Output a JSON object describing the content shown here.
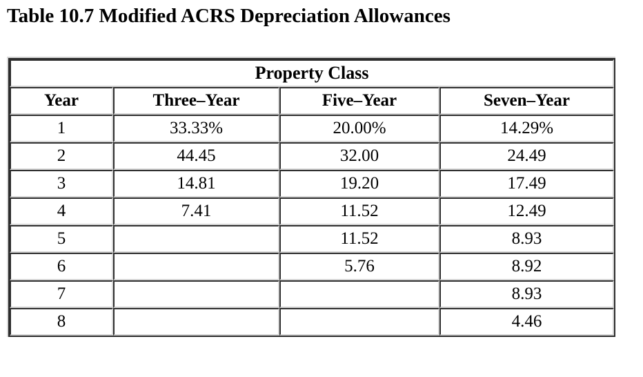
{
  "title": "Table 10.7 Modified ACRS Depreciation Allowances",
  "table": {
    "group_header": "Property Class",
    "columns": [
      "Year",
      "Three–Year",
      "Five–Year",
      "Seven–Year"
    ],
    "rows": [
      [
        "1",
        "33.33%",
        "20.00%",
        "14.29%"
      ],
      [
        "2",
        "44.45",
        "32.00",
        "24.49"
      ],
      [
        "3",
        "14.81",
        "19.20",
        "17.49"
      ],
      [
        "4",
        "7.41",
        "11.52",
        "12.49"
      ],
      [
        "5",
        "",
        "11.52",
        "8.93"
      ],
      [
        "6",
        "",
        "5.76",
        "8.92"
      ],
      [
        "7",
        "",
        "",
        "8.93"
      ],
      [
        "8",
        "",
        "",
        "4.46"
      ]
    ]
  },
  "colors": {
    "border_dark": "#2b2b2b",
    "border_light": "#d6d6d6",
    "text": "#000000",
    "background": "#ffffff"
  }
}
